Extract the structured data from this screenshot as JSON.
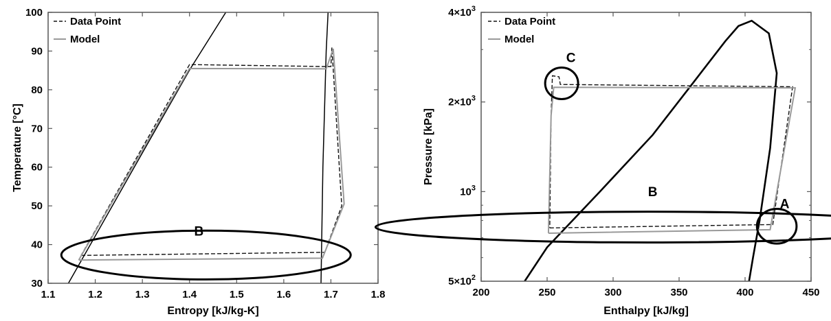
{
  "chart_data": [
    {
      "type": "line",
      "xlabel": "Entropy [kJ/kg-K]",
      "ylabel": "Temperature [°C]",
      "xlim": [
        1.1,
        1.8
      ],
      "ylim": [
        30,
        100
      ],
      "xticks": [
        1.1,
        1.2,
        1.3,
        1.4,
        1.5,
        1.6,
        1.7,
        1.8
      ],
      "yticks": [
        30,
        40,
        50,
        60,
        70,
        80,
        90,
        100
      ],
      "xtick_labels": [
        "1.1",
        "1.2",
        "1.3",
        "1.4",
        "1.5",
        "1.6",
        "1.7",
        "1.8"
      ],
      "ytick_labels": [
        "30",
        "40",
        "50",
        "60",
        "70",
        "80",
        "90",
        "100"
      ],
      "legend": {
        "placement": "top-left",
        "entries": [
          "Data Point",
          "Model"
        ]
      },
      "saturation_dome": [
        {
          "x": [
            1.143,
            1.2,
            1.3,
            1.4,
            1.477
          ],
          "y": [
            30,
            42.2,
            63.7,
            85.1,
            100
          ]
        },
        {
          "x": [
            1.679,
            1.683,
            1.69,
            1.694
          ],
          "y": [
            30,
            60,
            90,
            100
          ]
        }
      ],
      "series": [
        {
          "name": "Data Point",
          "style": "dashed",
          "x": [
            1.17,
            1.687,
            1.723,
            1.702,
            1.7,
            1.69,
            1.4,
            1.17
          ],
          "y": [
            37.2,
            38.0,
            50.0,
            90.9,
            86.0,
            86.0,
            86.5,
            37.2
          ]
        },
        {
          "name": "Model",
          "style": "solid",
          "x": [
            1.165,
            1.682,
            1.728,
            1.705,
            1.69,
            1.4,
            1.165
          ],
          "y": [
            36.0,
            36.5,
            50.5,
            90.6,
            85.4,
            85.5,
            36.0
          ]
        }
      ],
      "annotations": [
        {
          "label": "B",
          "x": 1.42,
          "y": 42.3,
          "ellipse": {
            "cx": 1.435,
            "cy": 37.3,
            "rx": 0.307,
            "ry": 6.3
          }
        }
      ]
    },
    {
      "type": "line",
      "xlabel": "Enthalpy [kJ/kg]",
      "ylabel": "Pressure [kPa]",
      "xlim": [
        200,
        450
      ],
      "ylim": [
        500,
        4000
      ],
      "yscale": "log",
      "xticks": [
        200,
        250,
        300,
        350,
        400,
        450
      ],
      "xtick_labels": [
        "200",
        "250",
        "300",
        "350",
        "400",
        "450"
      ],
      "yticks": [
        500,
        1000,
        2000,
        4000
      ],
      "ytick_labels": [
        {
          "base": "5×10",
          "exp": "2"
        },
        {
          "base": "10",
          "exp": "3"
        },
        {
          "base": "2×10",
          "exp": "3"
        },
        {
          "base": "4×10",
          "exp": "3"
        }
      ],
      "legend": {
        "placement": "top-left",
        "entries": [
          "Data Point",
          "Model"
        ]
      },
      "saturation_dome": [
        {
          "x": [
            233,
            250,
            290,
            330,
            360,
            385,
            395,
            405,
            418,
            424,
            419,
            411,
            406,
            403
          ],
          "y": [
            500,
            650,
            1000,
            1550,
            2300,
            3200,
            3600,
            3750,
            3400,
            2500,
            1400,
            800,
            600,
            500
          ]
        }
      ],
      "series": [
        {
          "name": "Data Point",
          "style": "dashed",
          "x": [
            252,
            421,
            436,
            260,
            259,
            254,
            253,
            252
          ],
          "y": [
            755,
            775,
            2250,
            2290,
            2430,
            2450,
            1800,
            755
          ]
        },
        {
          "name": "Model",
          "style": "solid",
          "x": [
            251,
            419,
            438,
            255,
            253,
            251
          ],
          "y": [
            725,
            745,
            2230,
            2240,
            1800,
            725
          ]
        }
      ],
      "annotations": [
        {
          "label": "B",
          "x": 330,
          "y": 965,
          "ellipse": {
            "cx": 327,
            "cy": 760,
            "rx": 207,
            "ry": 96
          }
        },
        {
          "label": "C",
          "x": 268,
          "y": 2720,
          "ellipse": {
            "cx": 261,
            "cy": 2310,
            "rx": 12.5,
            "ry": 300
          }
        },
        {
          "label": "A",
          "x": 430,
          "y": 880,
          "ellipse": {
            "cx": 424,
            "cy": 765,
            "rx": 15,
            "ry": 110
          }
        }
      ]
    }
  ]
}
